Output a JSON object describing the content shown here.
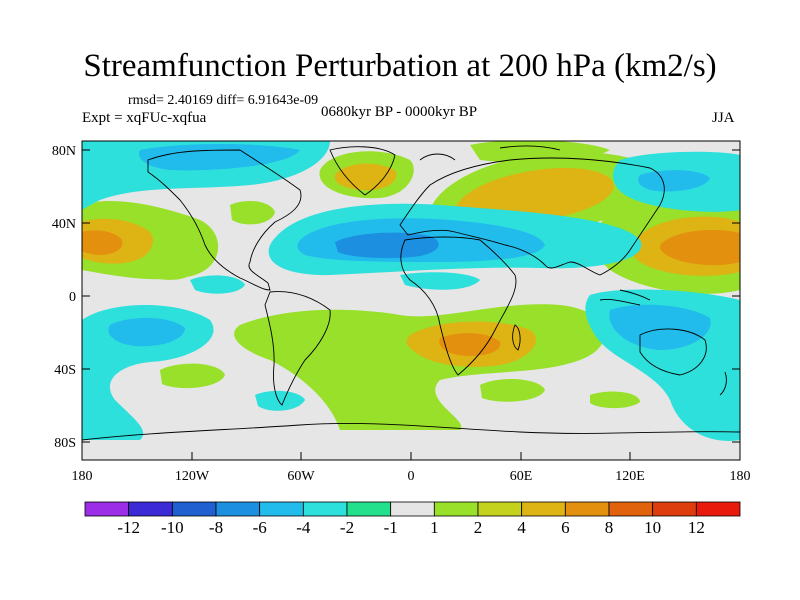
{
  "title": "Streamfunction Perturbation at 200 hPa (km2/s)",
  "stats": "rmsd= 2.40169 diff= 6.91643e-09",
  "experiment": "Expt = xqFUc-xqfua",
  "period": "0680kyr BP - 0000kyr BP",
  "season": "JJA",
  "lat_axis": [
    "80N",
    "40N",
    "0",
    "40S",
    "80S"
  ],
  "lon_axis": [
    "180",
    "120W",
    "60W",
    "0",
    "60E",
    "120E",
    "180"
  ],
  "colorbar": {
    "labels": [
      "-12",
      "-10",
      "-8",
      "-6",
      "-4",
      "-2",
      "-1",
      "1",
      "2",
      "4",
      "6",
      "8",
      "10",
      "12"
    ],
    "colors": [
      "#9b2ee6",
      "#3c2ad6",
      "#1f5fd0",
      "#1c8fe0",
      "#22bcec",
      "#2de0dc",
      "#22e08c",
      "#e6e6e6",
      "#98e02a",
      "#c4d21e",
      "#deb414",
      "#e2900e",
      "#e0620c",
      "#dd3c0c",
      "#e81a0c"
    ]
  },
  "colors": {
    "ocean_neutral": "#e6e6e6",
    "coastline": "#000000"
  }
}
